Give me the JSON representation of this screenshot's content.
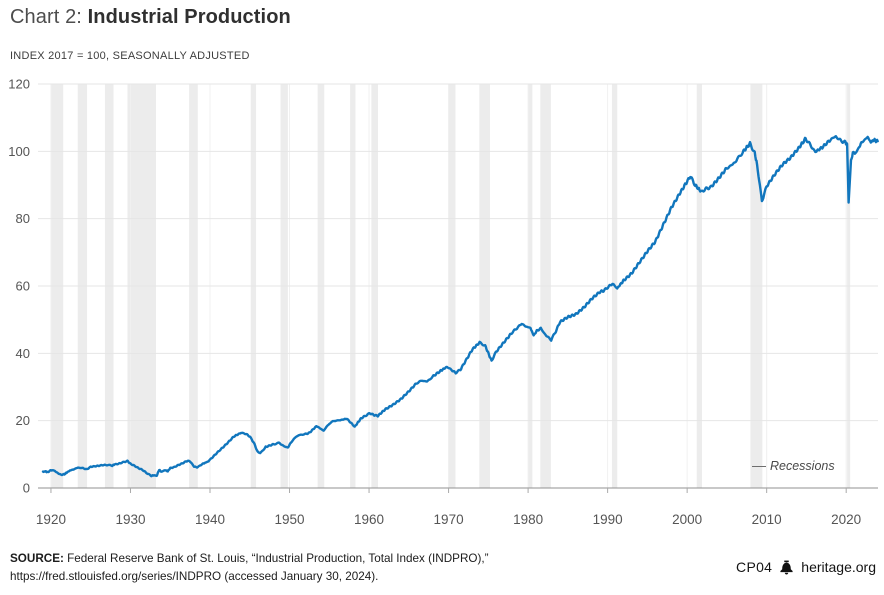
{
  "header": {
    "kicker": "Chart 2: ",
    "title": "Industrial Production",
    "subtitle": "INDEX 2017 = 100, SEASONALLY ADJUSTED"
  },
  "legend": {
    "label": "Recessions"
  },
  "footer": {
    "source_label": "SOURCE:",
    "source_text": " Federal Reserve Bank of St. Louis, “Industrial Production, Total Index (INDPRO),”",
    "source_line2": "https://fred.stlouisfed.org/series/INDPRO (accessed January 30, 2024).",
    "code": "CP04",
    "bell_icon": "liberty-bell",
    "site": "heritage.org"
  },
  "chart_data": {
    "type": "line",
    "title": "Industrial Production",
    "subtitle_note": "INDEX 2017 = 100, SEASONALLY ADJUSTED",
    "xlabel": "",
    "ylabel": "",
    "xlim": [
      1919,
      2024
    ],
    "ylim": [
      0,
      120
    ],
    "x_ticks": [
      1920,
      1930,
      1940,
      1950,
      1960,
      1970,
      1980,
      1990,
      2000,
      2010,
      2020
    ],
    "y_ticks": [
      0,
      20,
      40,
      60,
      80,
      100,
      120
    ],
    "grid": true,
    "legend_position": "bottom-right",
    "colors": {
      "line": "#1176bd",
      "recession_band": "#ececec",
      "gridline": "#e6e6e6",
      "vertical_gridline": "#f0f0f0",
      "axis": "#909090",
      "tick_text": "#555555"
    },
    "recessions": {
      "label": "Recessions",
      "bands": [
        [
          1920.04,
          1921.54
        ],
        [
          1923.37,
          1924.54
        ],
        [
          1926.79,
          1927.87
        ],
        [
          1929.62,
          1933.21
        ],
        [
          1937.37,
          1938.46
        ],
        [
          1945.12,
          1945.79
        ],
        [
          1948.87,
          1949.79
        ],
        [
          1953.54,
          1954.37
        ],
        [
          1957.62,
          1958.29
        ],
        [
          1960.29,
          1961.12
        ],
        [
          1969.96,
          1970.87
        ],
        [
          1973.87,
          1975.21
        ],
        [
          1980.04,
          1980.54
        ],
        [
          1981.54,
          1982.87
        ],
        [
          1990.54,
          1991.21
        ],
        [
          2001.21,
          2001.87
        ],
        [
          2007.96,
          2009.46
        ],
        [
          2020.12,
          2020.29
        ]
      ]
    },
    "series": [
      {
        "name": "Industrial Production, Total Index (INDPRO)",
        "color": "#1176bd",
        "points": [
          [
            1919,
            4.8
          ],
          [
            1919.3,
            4.95
          ],
          [
            1919.6,
            4.7
          ],
          [
            1920,
            5.3
          ],
          [
            1920.4,
            5.2
          ],
          [
            1920.8,
            4.5
          ],
          [
            1921.3,
            3.9
          ],
          [
            1921.7,
            4.1
          ],
          [
            1922,
            4.6
          ],
          [
            1922.4,
            5.2
          ],
          [
            1922.8,
            5.5
          ],
          [
            1923.4,
            6.05
          ],
          [
            1924,
            5.9
          ],
          [
            1924.5,
            5.55
          ],
          [
            1925,
            6.3
          ],
          [
            1925.5,
            6.45
          ],
          [
            1926,
            6.6
          ],
          [
            1926.5,
            6.8
          ],
          [
            1927,
            6.85
          ],
          [
            1927.7,
            6.65
          ],
          [
            1928,
            7.0
          ],
          [
            1928.5,
            7.2
          ],
          [
            1929,
            7.6
          ],
          [
            1929.6,
            8.05
          ],
          [
            1930,
            7.2
          ],
          [
            1930.5,
            6.6
          ],
          [
            1931,
            5.9
          ],
          [
            1931.5,
            5.4
          ],
          [
            1932,
            4.5
          ],
          [
            1932.6,
            3.6
          ],
          [
            1933,
            3.8
          ],
          [
            1933.3,
            3.6
          ],
          [
            1933.6,
            5.4
          ],
          [
            1933.9,
            4.8
          ],
          [
            1934.3,
            5.3
          ],
          [
            1934.7,
            5.0
          ],
          [
            1935,
            5.9
          ],
          [
            1935.5,
            6.2
          ],
          [
            1936,
            6.8
          ],
          [
            1936.5,
            7.3
          ],
          [
            1937,
            7.9
          ],
          [
            1937.4,
            8.1
          ],
          [
            1938,
            6.4
          ],
          [
            1938.4,
            6.1
          ],
          [
            1939,
            7.1
          ],
          [
            1939.8,
            7.9
          ],
          [
            1940,
            8.4
          ],
          [
            1941,
            10.7
          ],
          [
            1942,
            12.9
          ],
          [
            1943,
            15.3
          ],
          [
            1943.9,
            16.4
          ],
          [
            1944.5,
            16.1
          ],
          [
            1945,
            15.3
          ],
          [
            1945.5,
            13.5
          ],
          [
            1946,
            10.7
          ],
          [
            1946.3,
            10.4
          ],
          [
            1946.8,
            11.5
          ],
          [
            1947,
            12.2
          ],
          [
            1947.5,
            12.6
          ],
          [
            1948,
            13.0
          ],
          [
            1948.7,
            13.4
          ],
          [
            1949.3,
            12.4
          ],
          [
            1949.8,
            12.0
          ],
          [
            1950.2,
            13.6
          ],
          [
            1950.8,
            15.2
          ],
          [
            1951.3,
            15.8
          ],
          [
            1952,
            16.0
          ],
          [
            1952.5,
            16.4
          ],
          [
            1953.4,
            18.4
          ],
          [
            1954.3,
            17.0
          ],
          [
            1955,
            19.2
          ],
          [
            1955.7,
            20.0
          ],
          [
            1956.3,
            20.1
          ],
          [
            1957.2,
            20.6
          ],
          [
            1958.2,
            18.2
          ],
          [
            1959,
            20.7
          ],
          [
            1959.5,
            21.4
          ],
          [
            1960.1,
            22.2
          ],
          [
            1960.6,
            21.7
          ],
          [
            1961.1,
            21.4
          ],
          [
            1962,
            23.3
          ],
          [
            1963,
            24.7
          ],
          [
            1964,
            26.4
          ],
          [
            1965,
            28.7
          ],
          [
            1966,
            31.2
          ],
          [
            1966.7,
            31.9
          ],
          [
            1967.3,
            31.6
          ],
          [
            1968,
            33.1
          ],
          [
            1969,
            34.8
          ],
          [
            1969.8,
            36.0
          ],
          [
            1970.4,
            35.0
          ],
          [
            1970.9,
            34.2
          ],
          [
            1971.5,
            35.2
          ],
          [
            1972,
            37.2
          ],
          [
            1973,
            41.2
          ],
          [
            1973.9,
            43.2
          ],
          [
            1974.6,
            42.3
          ],
          [
            1975.4,
            37.8
          ],
          [
            1976,
            40.5
          ],
          [
            1977,
            43.4
          ],
          [
            1978,
            46.2
          ],
          [
            1979.2,
            48.8
          ],
          [
            1979.7,
            48.0
          ],
          [
            1980.3,
            47.5
          ],
          [
            1980.7,
            45.3
          ],
          [
            1981.1,
            46.7
          ],
          [
            1981.6,
            47.4
          ],
          [
            1982.3,
            45.2
          ],
          [
            1982.9,
            44.0
          ],
          [
            1983.5,
            46.6
          ],
          [
            1984,
            49.3
          ],
          [
            1985,
            50.8
          ],
          [
            1986,
            51.6
          ],
          [
            1987,
            53.6
          ],
          [
            1988,
            56.2
          ],
          [
            1989,
            58.2
          ],
          [
            1989.5,
            58.6
          ],
          [
            1990.6,
            60.7
          ],
          [
            1991.2,
            59.3
          ],
          [
            1992,
            61.6
          ],
          [
            1993,
            63.7
          ],
          [
            1994,
            67.0
          ],
          [
            1995,
            70.3
          ],
          [
            1996,
            73.2
          ],
          [
            1997,
            78.2
          ],
          [
            1998,
            83.2
          ],
          [
            1999,
            87.2
          ],
          [
            2000.4,
            92.6
          ],
          [
            2001,
            90.0
          ],
          [
            2001.8,
            88.0
          ],
          [
            2002.4,
            88.9
          ],
          [
            2003,
            89.4
          ],
          [
            2004,
            92.1
          ],
          [
            2005,
            95.1
          ],
          [
            2005.7,
            96.0
          ],
          [
            2006.3,
            97.6
          ],
          [
            2007,
            99.8
          ],
          [
            2007.9,
            102.3
          ],
          [
            2008.5,
            99.5
          ],
          [
            2008.8,
            96.0
          ],
          [
            2009.4,
            85.2
          ],
          [
            2010,
            89.6
          ],
          [
            2011,
            93.1
          ],
          [
            2012,
            96.1
          ],
          [
            2013,
            98.1
          ],
          [
            2014,
            100.9
          ],
          [
            2014.9,
            103.8
          ],
          [
            2015.5,
            101.9
          ],
          [
            2016.1,
            99.8
          ],
          [
            2017,
            101.2
          ],
          [
            2018,
            103.4
          ],
          [
            2018.7,
            104.4
          ],
          [
            2019.3,
            103.2
          ],
          [
            2019.9,
            102.6
          ],
          [
            2020.12,
            102.2
          ],
          [
            2020.3,
            84.8
          ],
          [
            2020.6,
            97.3
          ],
          [
            2020.9,
            99.9
          ],
          [
            2021.1,
            99.2
          ],
          [
            2021.6,
            101.1
          ],
          [
            2022,
            102.9
          ],
          [
            2022.7,
            104.2
          ],
          [
            2023.1,
            102.7
          ],
          [
            2023.5,
            103.4
          ],
          [
            2023.96,
            103.0
          ]
        ]
      }
    ]
  }
}
